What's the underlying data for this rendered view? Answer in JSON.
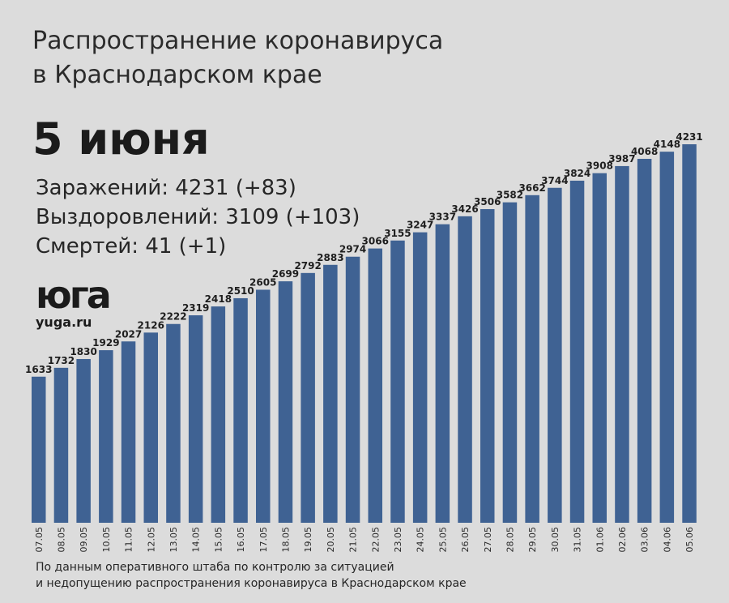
{
  "header": {
    "title_line1": "Распространение коронавируса",
    "title_line2": "в Краснодарском крае",
    "date": "5 июня"
  },
  "stats": {
    "infected": "Заражений: 4231 (+83)",
    "recovered": "Выздоровлений: 3109 (+103)",
    "deaths": "Смертей: 41 (+1)"
  },
  "logo": {
    "mark": "юга",
    "url": "yuga.ru"
  },
  "source": {
    "line1": "По данным оперативного штаба по контролю за ситуацией",
    "line2": "и недопущению распространения коронавируса в Краснодарском крае"
  },
  "colors": {
    "bar": "#3f6293",
    "background": "#dcdcdc"
  },
  "chart_data": {
    "type": "bar",
    "categories": [
      "07.05",
      "08.05",
      "09.05",
      "10.05",
      "11.05",
      "12.05",
      "13.05",
      "14.05",
      "15.05",
      "16.05",
      "17.05",
      "18.05",
      "19.05",
      "20.05",
      "21.05",
      "22.05",
      "23.05",
      "24.05",
      "25.05",
      "26.05",
      "27.05",
      "28.05",
      "29.05",
      "30.05",
      "31.05",
      "01.06",
      "02.06",
      "03.06",
      "04.06",
      "05.06"
    ],
    "values": [
      1633,
      1732,
      1830,
      1929,
      2027,
      2126,
      2222,
      2319,
      2418,
      2510,
      2605,
      2699,
      2792,
      2883,
      2974,
      3066,
      3155,
      3247,
      3337,
      3426,
      3506,
      3582,
      3662,
      3744,
      3824,
      3908,
      3987,
      4068,
      4148,
      4231
    ],
    "ylim": [
      0,
      4231
    ],
    "grid": false,
    "data_labels": true
  }
}
